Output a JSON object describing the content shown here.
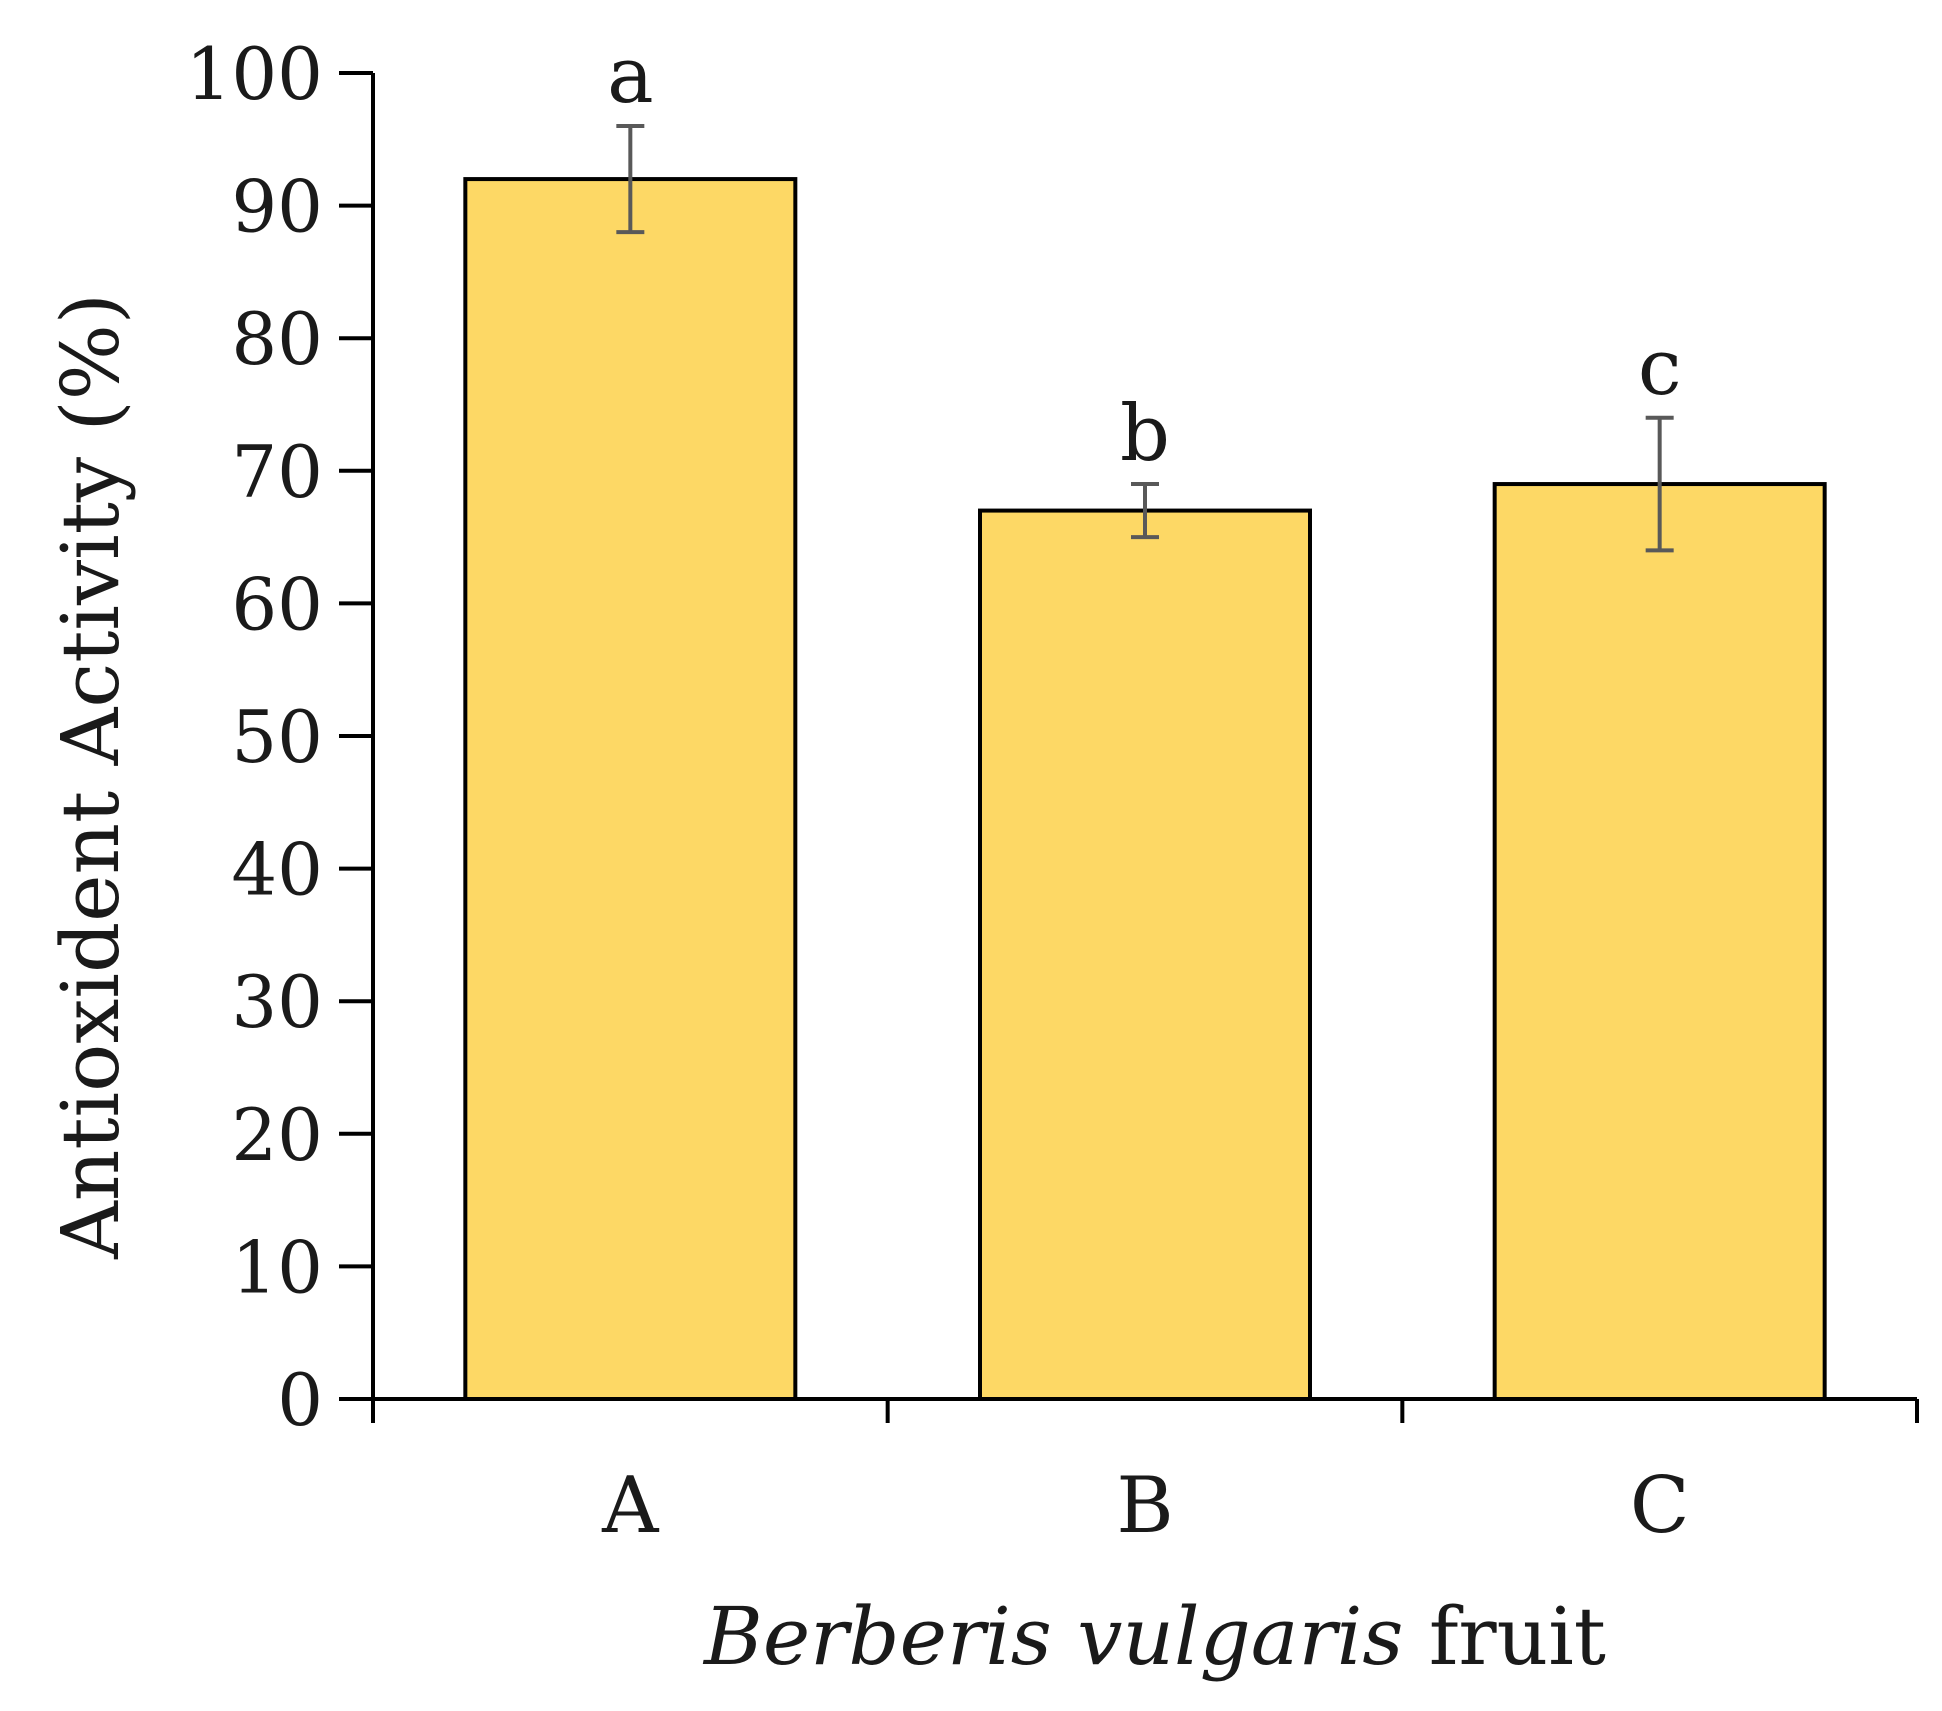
{
  "chart_data": {
    "type": "bar",
    "categories": [
      "A",
      "B",
      "C"
    ],
    "values": [
      92,
      67,
      69
    ],
    "error": [
      4,
      2,
      5
    ],
    "significance": [
      "a",
      "b",
      "c"
    ],
    "ylabel": "Antioxident Activity (%)",
    "xlabel_italic": "Berberis vulgaris",
    "xlabel_rest": " fruit",
    "ylim": [
      0,
      100
    ],
    "yticks": [
      0,
      10,
      20,
      30,
      40,
      50,
      60,
      70,
      80,
      90,
      100
    ],
    "grid": false,
    "legend": "none",
    "bar_color": "#FDD865",
    "bar_edge_color": "#000000",
    "error_color": "#595959"
  }
}
